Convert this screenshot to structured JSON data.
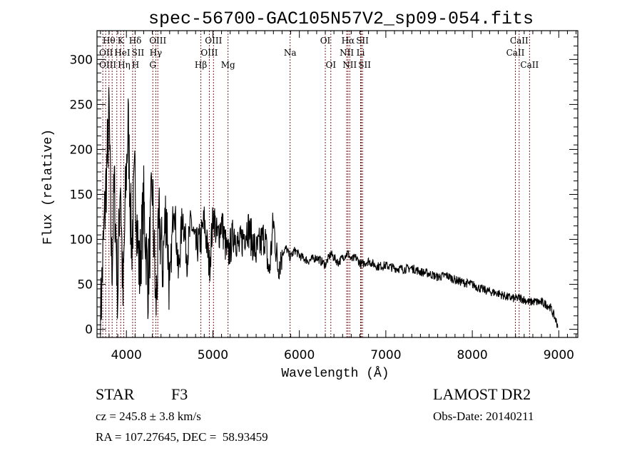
{
  "chart_data": {
    "type": "line",
    "title": "spec-56700-GAC105N57V2_sp09-054.fits",
    "xlabel": "Wavelength (Å)",
    "ylabel": "Flux (relative)",
    "xlim": [
      3660,
      9220
    ],
    "ylim": [
      -9,
      332
    ],
    "x_ticks": [
      4000,
      5000,
      6000,
      7000,
      8000,
      9000
    ],
    "x_tick_labels": [
      "4000",
      "5000",
      "6000",
      "7000",
      "8000",
      "9000"
    ],
    "y_ticks": [
      0,
      50,
      100,
      150,
      200,
      250,
      300
    ],
    "y_tick_labels": [
      "0",
      "50",
      "100",
      "150",
      "200",
      "250",
      "300"
    ],
    "grid": false,
    "series": [
      {
        "name": "spectrum",
        "color": "#000000",
        "x": [
          3700,
          3750,
          3800,
          3830,
          3860,
          3900,
          3930,
          3960,
          3990,
          4020,
          4060,
          4100,
          4150,
          4200,
          4250,
          4300,
          4340,
          4380,
          4420,
          4460,
          4500,
          4550,
          4600,
          4650,
          4700,
          4750,
          4800,
          4861,
          4900,
          4960,
          5007,
          5050,
          5100,
          5170,
          5250,
          5300,
          5400,
          5500,
          5600,
          5650,
          5700,
          5750,
          5800,
          5850,
          5893,
          5950,
          6000,
          6100,
          6200,
          6300,
          6364,
          6450,
          6500,
          6563,
          6600,
          6650,
          6716,
          6800,
          6900,
          7000,
          7100,
          7200,
          7300,
          7400,
          7500,
          7600,
          7700,
          7800,
          7900,
          8000,
          8100,
          8200,
          8300,
          8400,
          8500,
          8542,
          8600,
          8662,
          8700,
          8800,
          8850,
          8900,
          8950,
          8990
        ],
        "y": [
          10,
          130,
          240,
          60,
          160,
          40,
          180,
          30,
          150,
          230,
          90,
          170,
          60,
          140,
          50,
          160,
          20,
          120,
          70,
          140,
          40,
          150,
          60,
          130,
          80,
          120,
          90,
          100,
          120,
          70,
          130,
          100,
          120,
          80,
          110,
          90,
          115,
          85,
          105,
          60,
          120,
          70,
          85,
          90,
          80,
          88,
          82,
          76,
          80,
          72,
          84,
          74,
          80,
          85,
          77,
          80,
          72,
          76,
          70,
          71,
          68,
          67,
          68,
          64,
          62,
          58,
          60,
          55,
          52,
          50,
          45,
          42,
          40,
          36,
          34,
          35,
          33,
          30,
          31,
          30,
          28,
          25,
          14,
          4
        ]
      }
    ],
    "annotations": [
      {
        "label": "Hθ",
        "wavelength": 3798,
        "row": 1
      },
      {
        "label": "K",
        "wavelength": 3934,
        "row": 1
      },
      {
        "label": "Hδ",
        "wavelength": 4102,
        "row": 1
      },
      {
        "label": "OIII",
        "wavelength": 4363,
        "row": 1
      },
      {
        "label": "OIII",
        "wavelength": 5007,
        "row": 1
      },
      {
        "label": "OI",
        "wavelength": 6300,
        "row": 1
      },
      {
        "label": "Hα",
        "wavelength": 6563,
        "row": 1
      },
      {
        "label": "SII",
        "wavelength": 6716,
        "row": 1
      },
      {
        "label": "CaII",
        "wavelength": 8542,
        "row": 1
      },
      {
        "label": "OII",
        "wavelength": 3727,
        "row": 2
      },
      {
        "label": "HeI",
        "wavelength": 3889,
        "row": 2
      },
      {
        "label": "SII",
        "wavelength": 4072,
        "row": 2
      },
      {
        "label": "Hγ",
        "wavelength": 4340,
        "row": 2
      },
      {
        "label": "OIII",
        "wavelength": 4959,
        "row": 2
      },
      {
        "label": "Na",
        "wavelength": 5893,
        "row": 2
      },
      {
        "label": "NII",
        "wavelength": 6548,
        "row": 2
      },
      {
        "label": "Li",
        "wavelength": 6708,
        "row": 2
      },
      {
        "label": "CaII",
        "wavelength": 8498,
        "row": 2
      },
      {
        "label": "OIII",
        "wavelength": 3760,
        "row": 3
      },
      {
        "label": "Hη",
        "wavelength": 3835,
        "row": 3
      },
      {
        "label": "H",
        "wavelength": 3969,
        "row": 3
      },
      {
        "label": "G",
        "wavelength": 4305,
        "row": 3
      },
      {
        "label": "Hβ",
        "wavelength": 4861,
        "row": 3
      },
      {
        "label": "Mg",
        "wavelength": 5175,
        "row": 3
      },
      {
        "label": "OI",
        "wavelength": 6364,
        "row": 3
      },
      {
        "label": "NII",
        "wavelength": 6583,
        "row": 3
      },
      {
        "label": "SII",
        "wavelength": 6731,
        "row": 3
      },
      {
        "label": "CaII",
        "wavelength": 8662,
        "row": 3
      }
    ],
    "line_marker_color": "#7a1f1f"
  },
  "info": {
    "object_class": "STAR",
    "subclass": "F3",
    "redshift": "cz = 245.8 ± 3.8 km/s",
    "coords": "RA = 107.27645, DEC =  58.93459",
    "survey": "LAMOST DR2",
    "obs_date": "Obs-Date: 20140211"
  }
}
